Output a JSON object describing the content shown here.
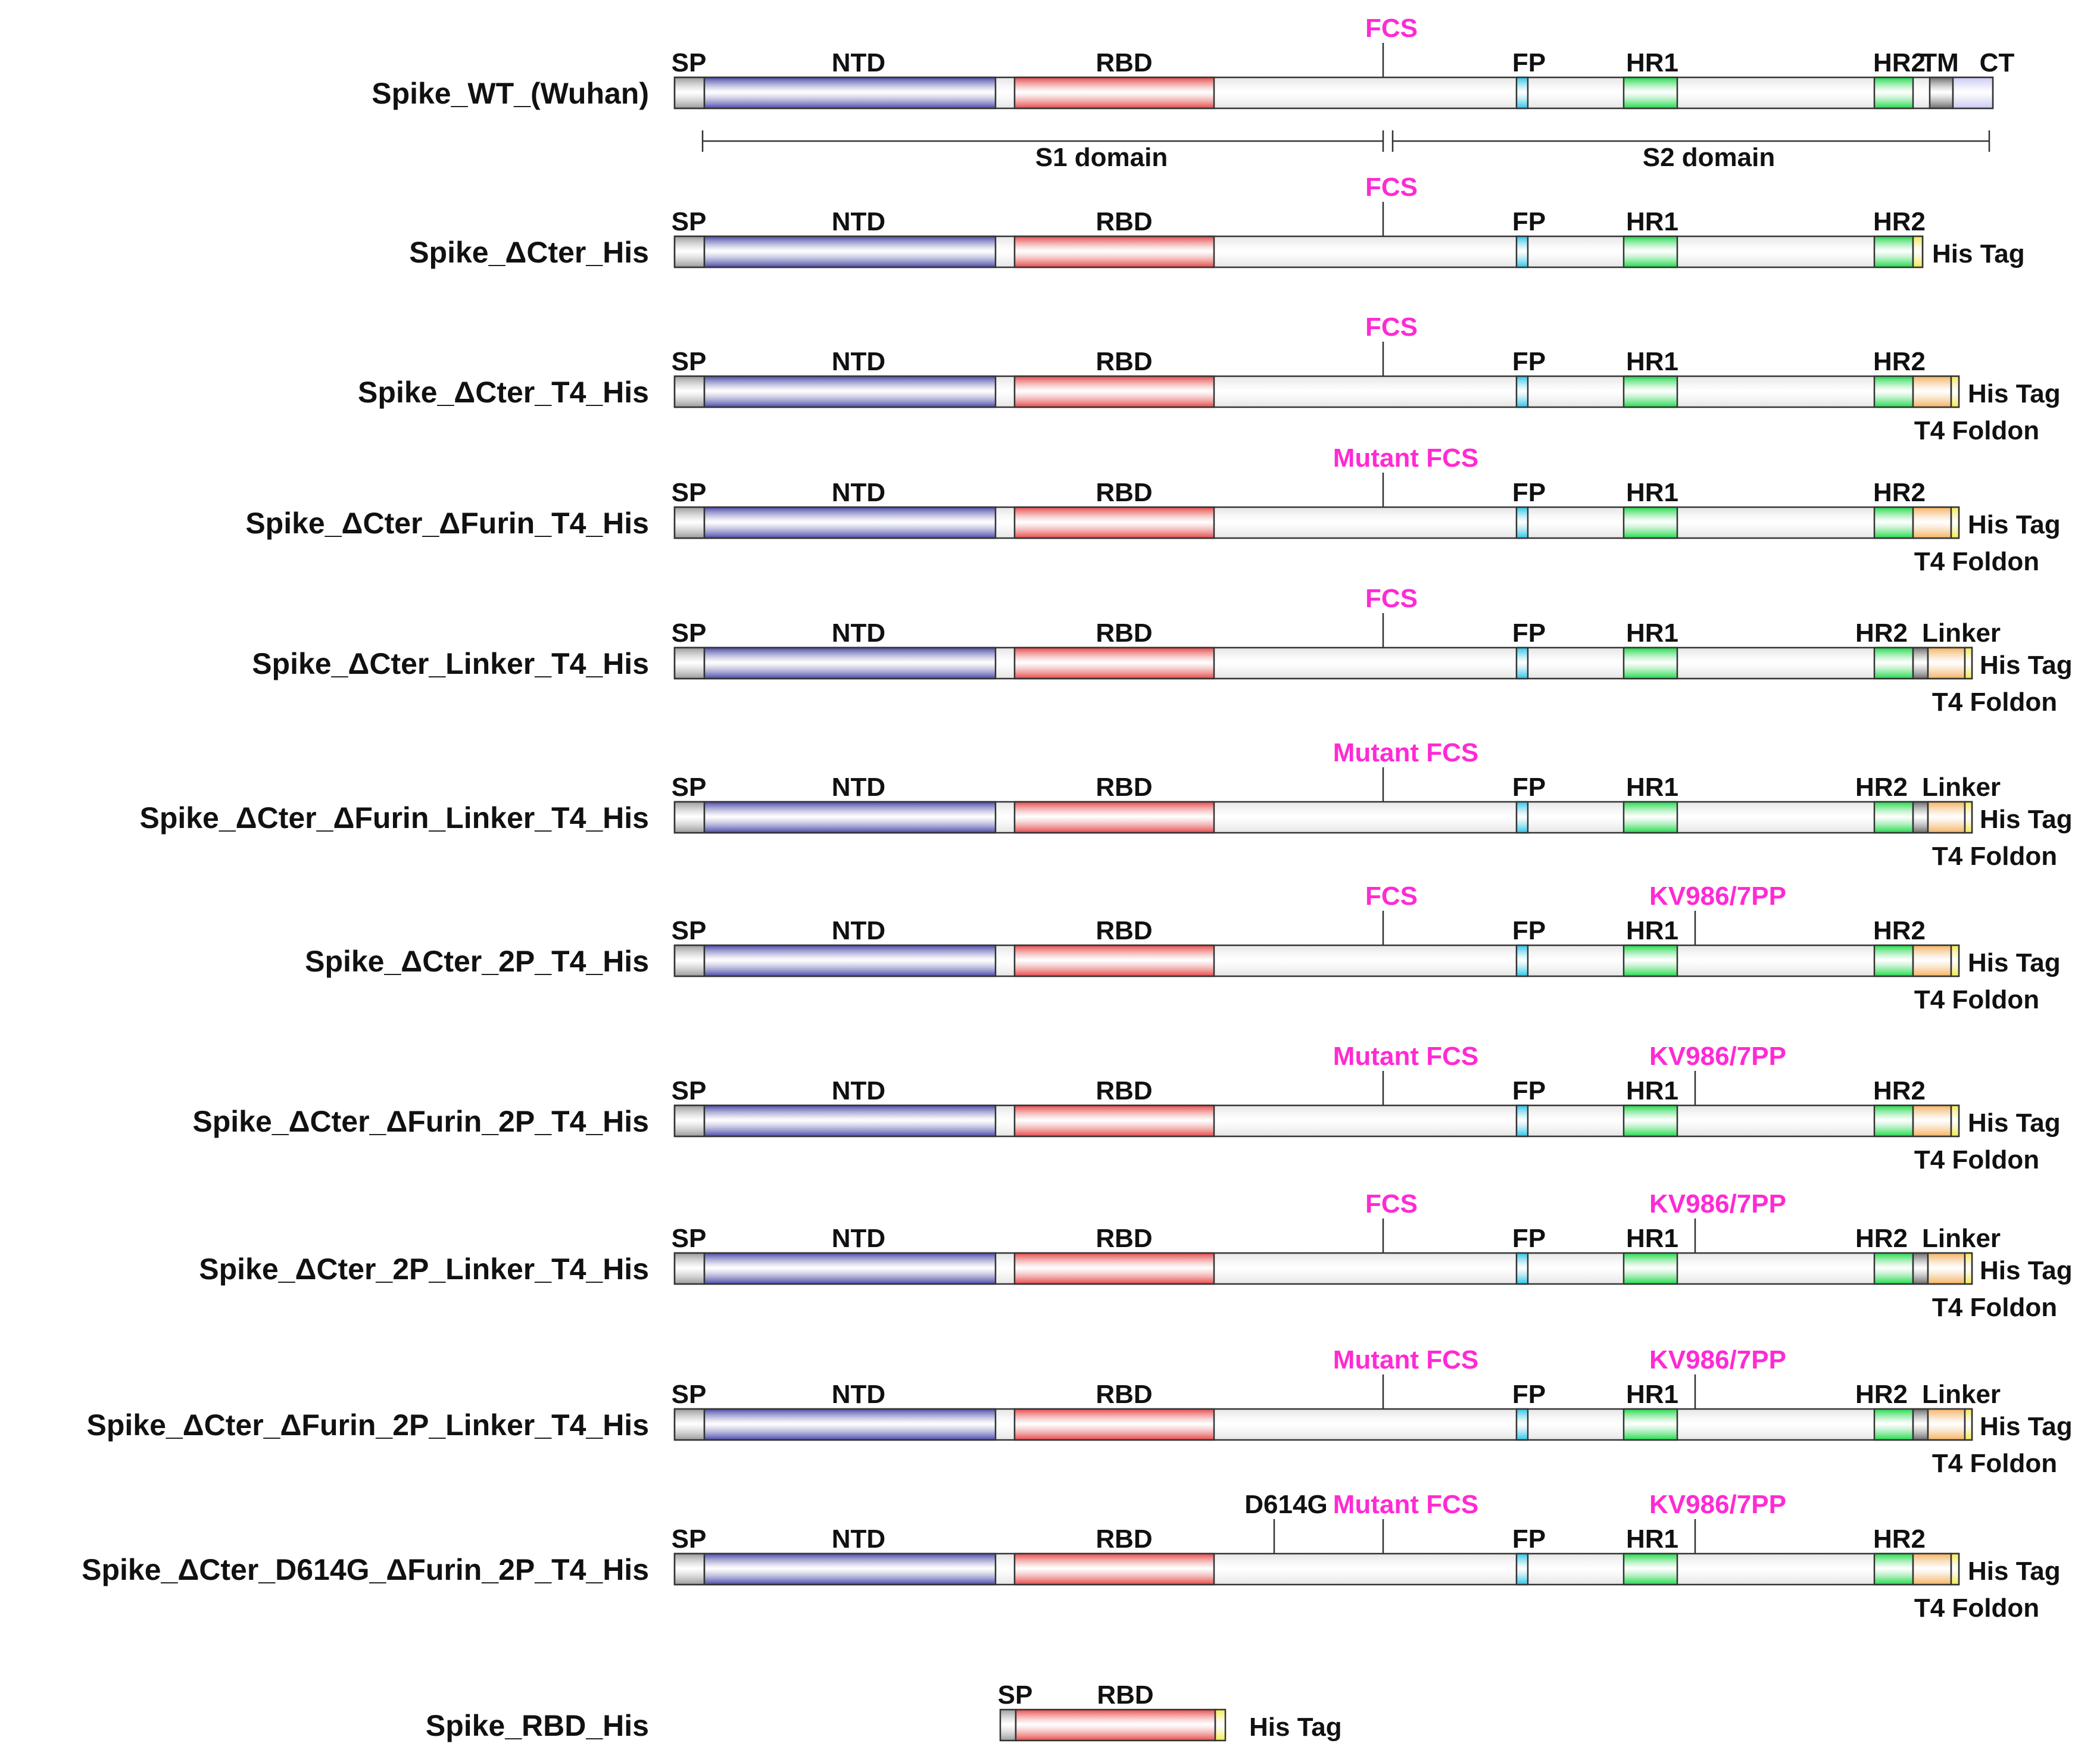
{
  "constructs": [
    {
      "name": "Spike_WT_(Wuhan)",
      "variant": "wt",
      "fcs_label": "FCS"
    },
    {
      "name": "Spike_ΔCter_His",
      "variant": "dcter",
      "fcs_label": "FCS"
    },
    {
      "name": "Spike_ΔCter_T4_His",
      "variant": "t4",
      "fcs_label": "FCS"
    },
    {
      "name": "Spike_ΔCter_ΔFurin_T4_His",
      "variant": "t4",
      "fcs_label": "Mutant FCS"
    },
    {
      "name": "Spike_ΔCter_Linker_T4_His",
      "variant": "linker",
      "fcs_label": "FCS"
    },
    {
      "name": "Spike_ΔCter_ΔFurin_Linker_T4_His",
      "variant": "linker",
      "fcs_label": "Mutant FCS"
    },
    {
      "name": "Spike_ΔCter_2P_T4_His",
      "variant": "t4",
      "fcs_label": "FCS",
      "mutation": "KV986/7PP"
    },
    {
      "name": "Spike_ΔCter_ΔFurin_2P_T4_His",
      "variant": "t4",
      "fcs_label": "Mutant FCS",
      "mutation": "KV986/7PP"
    },
    {
      "name": "Spike_ΔCter_2P_Linker_T4_His",
      "variant": "linker",
      "fcs_label": "FCS",
      "mutation": "KV986/7PP"
    },
    {
      "name": "Spike_ΔCter_ΔFurin_2P_Linker_T4_His",
      "variant": "linker",
      "fcs_label": "Mutant FCS",
      "mutation": "KV986/7PP"
    },
    {
      "name": "Spike_ΔCter_D614G_ΔFurin_2P_T4_His",
      "variant": "t4",
      "fcs_label": "Mutant FCS",
      "mutation": "KV986/7PP",
      "extra_site": "D614G"
    },
    {
      "name": "Spike_RBD_His",
      "variant": "rbd"
    }
  ],
  "domain_labels": {
    "sp": "SP",
    "ntd": "NTD",
    "rbd": "RBD",
    "fp": "FP",
    "hr1": "HR1",
    "hr2": "HR2",
    "tm": "TM",
    "ct": "CT",
    "linker": "Linker",
    "his_tag": "His Tag",
    "t4_foldon": "T4 Foldon"
  },
  "wt_regions": {
    "s1": "S1 domain",
    "s2": "S2 domain"
  },
  "colors": {
    "sp": "#9a9a9a",
    "ntd": "#4a4aaa",
    "rbd": "#e84848",
    "backbone": "#e4e4e4",
    "fp": "#29c6ea",
    "hr": "#1fdb4a",
    "tm": "#6b6b6b",
    "ct": "#c8c8f4",
    "linker": "#6b6b6b",
    "t4": "#f6b25e",
    "his": "#f2ea4a",
    "site": "#ff2ad4",
    "text": "#111111"
  }
}
